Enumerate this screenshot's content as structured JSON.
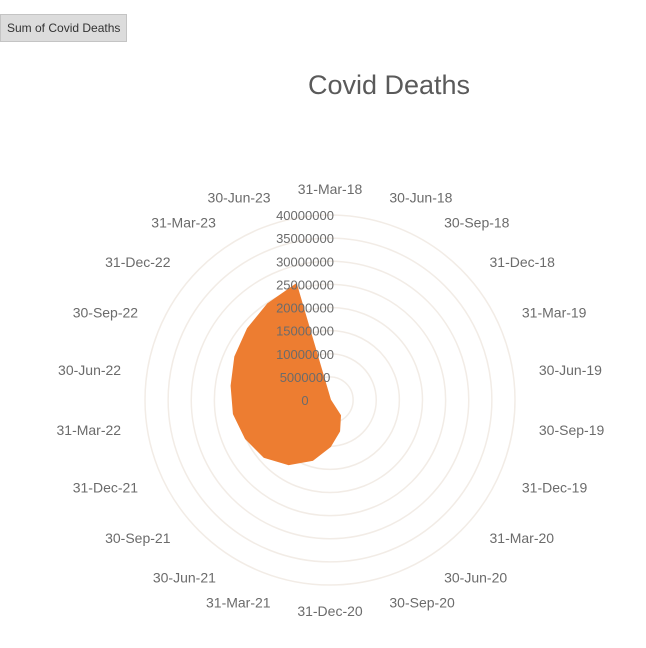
{
  "field_button": {
    "label": "Sum of Covid Deaths"
  },
  "chart_data": {
    "type": "radar",
    "title": "Covid Deaths",
    "fill_color": "#ed7d31",
    "grid_color": "#f2ece6",
    "label_color": "#6b6b6b",
    "categories": [
      "31-Mar-18",
      "30-Jun-18",
      "30-Sep-18",
      "31-Dec-18",
      "31-Mar-19",
      "30-Jun-19",
      "30-Sep-19",
      "31-Dec-19",
      "31-Mar-20",
      "30-Jun-20",
      "30-Sep-20",
      "31-Dec-20",
      "31-Mar-21",
      "30-Jun-21",
      "30-Sep-21",
      "31-Dec-21",
      "31-Mar-22",
      "30-Jun-22",
      "30-Sep-22",
      "31-Dec-22",
      "31-Mar-23",
      "30-Jun-23"
    ],
    "series": [
      {
        "values": [
          0,
          0,
          0,
          0,
          0,
          0,
          0,
          0,
          0,
          4000000,
          7000000,
          10000000,
          13500000,
          16500000,
          18800000,
          20000000,
          21000000,
          21500000,
          22500000,
          23500000,
          24700000,
          26000000
        ]
      }
    ],
    "ticks": [
      "0",
      "5000000",
      "10000000",
      "15000000",
      "20000000",
      "25000000",
      "30000000",
      "35000000",
      "40000000"
    ],
    "rmax": 40000000
  }
}
